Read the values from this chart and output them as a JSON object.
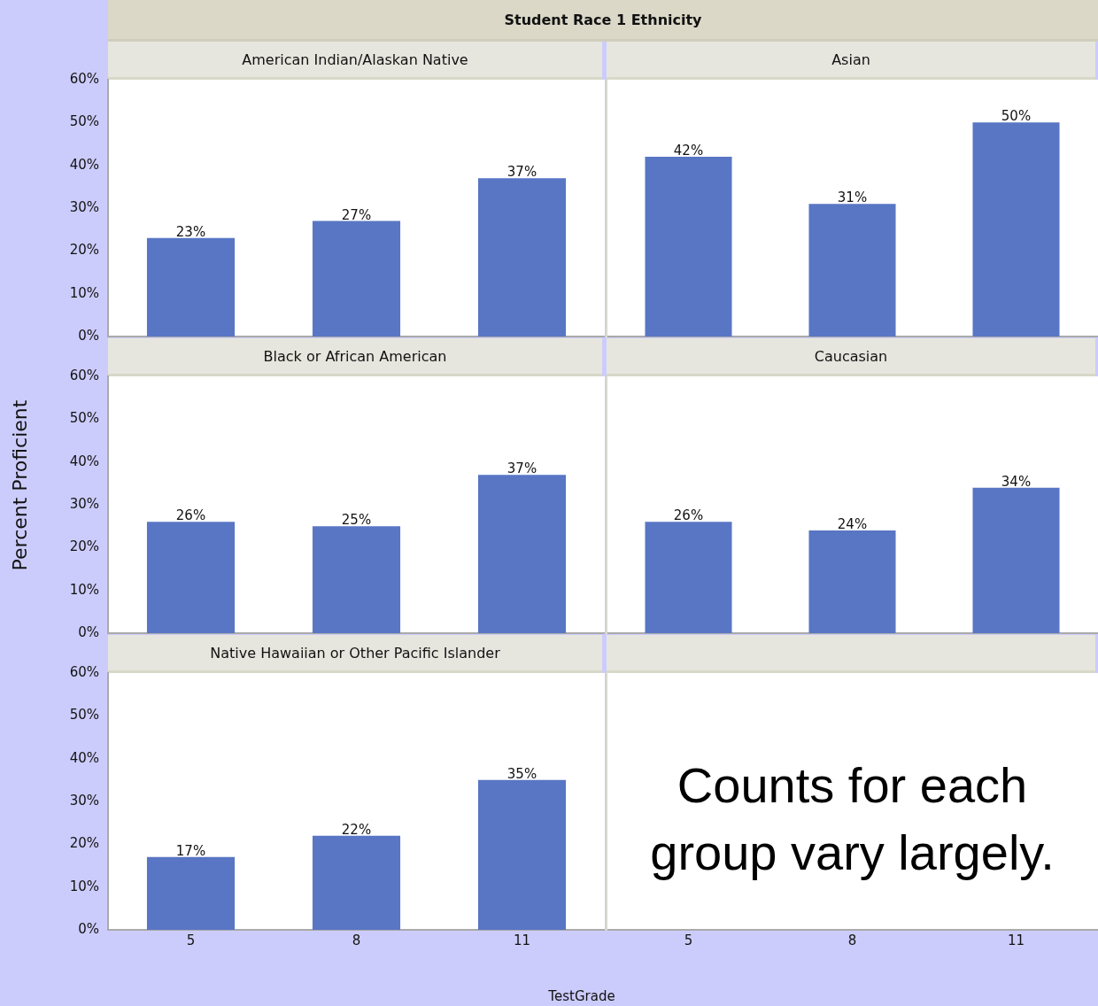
{
  "chart_data": [
    {
      "type": "other",
      "title": "Student Race 1 Ethnicity"
    },
    {
      "type": "bar",
      "title": "American Indian/Alaskan Native",
      "categories": [
        "5",
        "8",
        "11"
      ],
      "values": [
        23,
        27,
        37
      ],
      "value_labels": [
        "23%",
        "27%",
        "37%"
      ],
      "color": "#5876c4",
      "ylim": [
        0,
        60
      ],
      "yticks": [
        {
          "value": 0,
          "label": "0%"
        },
        {
          "value": 10,
          "label": "10%"
        },
        {
          "value": 20,
          "label": "20%"
        },
        {
          "value": 30,
          "label": "30%"
        },
        {
          "value": 40,
          "label": "40%"
        },
        {
          "value": 50,
          "label": "50%"
        },
        {
          "value": 60,
          "label": "60%"
        }
      ],
      "tick_labels": "y",
      "grid": false,
      "legend": false
    },
    {
      "type": "bar",
      "title": "Asian",
      "categories": [
        "5",
        "8",
        "11"
      ],
      "values": [
        42,
        31,
        50
      ],
      "value_labels": [
        "42%",
        "31%",
        "50%"
      ],
      "color": "#5876c4",
      "ylim": [
        0,
        60
      ],
      "tick_labels": false,
      "grid": false,
      "legend": false
    },
    {
      "type": "bar",
      "title": "Black or African American",
      "ylabel": "Percent Proficient",
      "categories": [
        "5",
        "8",
        "11"
      ],
      "values": [
        26,
        25,
        37
      ],
      "value_labels": [
        "26%",
        "25%",
        "37%"
      ],
      "color": "#5876c4",
      "ylim": [
        0,
        60
      ],
      "yticks": [
        {
          "value": 0,
          "label": "0%"
        },
        {
          "value": 10,
          "label": "10%"
        },
        {
          "value": 20,
          "label": "20%"
        },
        {
          "value": 30,
          "label": "30%"
        },
        {
          "value": 40,
          "label": "40%"
        },
        {
          "value": 50,
          "label": "50%"
        },
        {
          "value": 60,
          "label": "60%"
        }
      ],
      "tick_labels": "y",
      "grid": false,
      "legend": false
    },
    {
      "type": "bar",
      "title": "Caucasian",
      "categories": [
        "5",
        "8",
        "11"
      ],
      "values": [
        26,
        24,
        34
      ],
      "value_labels": [
        "26%",
        "24%",
        "34%"
      ],
      "color": "#5876c4",
      "ylim": [
        0,
        60
      ],
      "tick_labels": false,
      "grid": false,
      "legend": false
    },
    {
      "type": "bar",
      "title": "Native Hawaiian or Other Pacific Islander",
      "xlabel": "TestGrade",
      "categories": [
        "5",
        "8",
        "11"
      ],
      "values": [
        17,
        22,
        35
      ],
      "value_labels": [
        "17%",
        "22%",
        "35%"
      ],
      "color": "#5876c4",
      "ylim": [
        0,
        60
      ],
      "yticks": [
        {
          "value": 0,
          "label": "0%"
        },
        {
          "value": 10,
          "label": "10%"
        },
        {
          "value": 20,
          "label": "20%"
        },
        {
          "value": 30,
          "label": "30%"
        },
        {
          "value": 40,
          "label": "40%"
        },
        {
          "value": 50,
          "label": "50%"
        },
        {
          "value": 60,
          "label": "60%"
        }
      ],
      "grid": false,
      "legend": false
    },
    {
      "type": "bar",
      "categories": [
        "5",
        "8",
        "11"
      ],
      "values": [
        null,
        null,
        null
      ],
      "color": "#5876c4",
      "ylim": [
        0,
        60
      ],
      "tick_labels": "x",
      "grid": false,
      "legend": false,
      "annotations": [
        "Counts for each group vary largely."
      ]
    }
  ]
}
